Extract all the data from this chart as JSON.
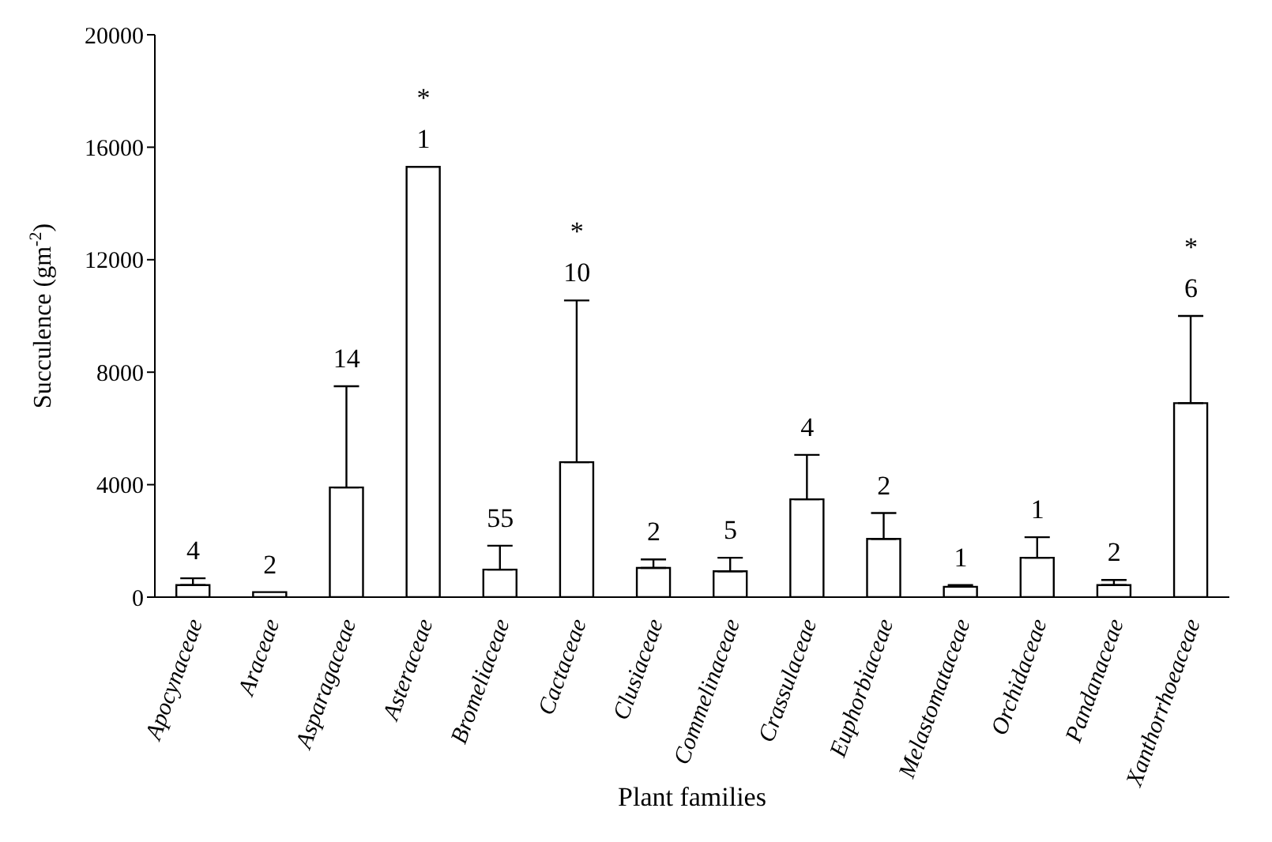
{
  "chart_data": {
    "type": "bar",
    "xlabel": "Plant families",
    "ylabel": "Succulence (gm$^{-2}$)",
    "categories": [
      "Apocynaceae",
      "Araceae",
      "Asparagaceae",
      "Asteraceae",
      "Bromeliaceae",
      "Cactaceae",
      "Clusiaceae",
      "Commelinaceae",
      "Crassulaceae",
      "Euphorbiaceae",
      "Melastomataceae",
      "Orchidaceae",
      "Pandanaceae",
      "Xanthorrhoeaceae"
    ],
    "values": [
      430,
      180,
      3900,
      15300,
      980,
      4800,
      1040,
      920,
      3480,
      2070,
      370,
      1400,
      430,
      6900
    ],
    "errors": [
      [
        430,
        670
      ],
      null,
      [
        3900,
        7500
      ],
      null,
      [
        980,
        1830
      ],
      [
        4800,
        10550
      ],
      [
        1040,
        1340
      ],
      [
        920,
        1400
      ],
      [
        3480,
        5060
      ],
      [
        2070,
        2990
      ],
      [
        370,
        430
      ],
      [
        1400,
        2130
      ],
      [
        430,
        610
      ],
      [
        6900,
        10000
      ]
    ],
    "color": "#ffffff",
    "ylim": [
      0,
      20000
    ],
    "yticks": [
      0,
      4000,
      8000,
      12000,
      16000,
      20000
    ],
    "grid": false,
    "annotations": [
      "4",
      "2",
      "14",
      "*\n1",
      "55",
      "*\n10",
      "2",
      "5",
      "4",
      "2",
      "1",
      "1",
      "2",
      "*\n6"
    ]
  }
}
